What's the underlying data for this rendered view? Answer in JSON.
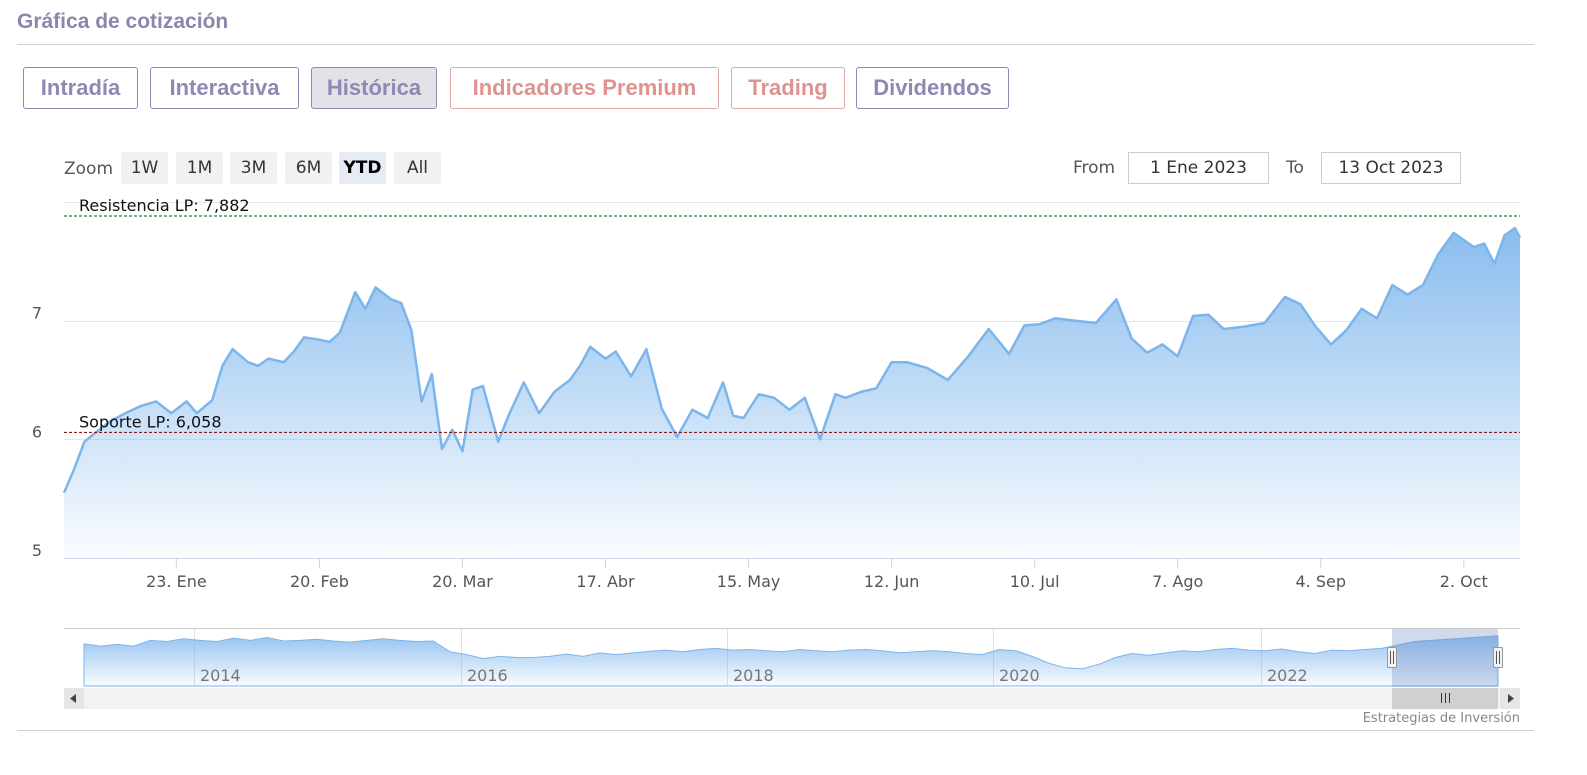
{
  "page": {
    "title": "Gráfica de cotización",
    "credit": "Estrategias de Inversión"
  },
  "tabs": [
    {
      "label": "Intradía",
      "active": false,
      "style": "normal"
    },
    {
      "label": "Interactiva",
      "active": false,
      "style": "normal"
    },
    {
      "label": "Histórica",
      "active": true,
      "style": "normal"
    },
    {
      "label": "Indicadores Premium",
      "active": false,
      "style": "premium"
    },
    {
      "label": "Trading",
      "active": false,
      "style": "premium"
    },
    {
      "label": "Dividendos",
      "active": false,
      "style": "normal"
    }
  ],
  "range_selector": {
    "zoom_label": "Zoom",
    "buttons": [
      "1W",
      "1M",
      "3M",
      "6M",
      "YTD",
      "All"
    ],
    "selected": "YTD",
    "from_label": "From",
    "from_value": "1 Ene 2023",
    "to_label": "To",
    "to_value": "13 Oct 2023"
  },
  "colors": {
    "line": "#7cb5ec",
    "resistance": "#2e7d32",
    "support": "#8b1a1a",
    "accent": "#8d89b2",
    "premium": "#de9390"
  },
  "chart_data": {
    "type": "area",
    "x_unit": "day",
    "x_start": "2023-01-01",
    "x_end": "2023-10-13",
    "ylim": [
      5,
      8
    ],
    "y_ticks": [
      5,
      6,
      7
    ],
    "x_ticks": [
      {
        "date": "2023-01-23",
        "label": "23. Ene"
      },
      {
        "date": "2023-02-20",
        "label": "20. Feb"
      },
      {
        "date": "2023-03-20",
        "label": "20. Mar"
      },
      {
        "date": "2023-04-17",
        "label": "17. Abr"
      },
      {
        "date": "2023-05-15",
        "label": "15. May"
      },
      {
        "date": "2023-06-12",
        "label": "12. Jun"
      },
      {
        "date": "2023-07-10",
        "label": "10. Jul"
      },
      {
        "date": "2023-08-07",
        "label": "7. Ago"
      },
      {
        "date": "2023-09-04",
        "label": "4. Sep"
      },
      {
        "date": "2023-10-02",
        "label": "2. Oct"
      }
    ],
    "series": [
      {
        "x": [
          "2023-01-01",
          "2023-01-03",
          "2023-01-05",
          "2023-01-07",
          "2023-01-10",
          "2023-01-13",
          "2023-01-16",
          "2023-01-19",
          "2023-01-22",
          "2023-01-25",
          "2023-01-27",
          "2023-01-30",
          "2023-02-01",
          "2023-02-03",
          "2023-02-06",
          "2023-02-08",
          "2023-02-10",
          "2023-02-13",
          "2023-02-15",
          "2023-02-17",
          "2023-02-20",
          "2023-02-22",
          "2023-02-24",
          "2023-02-27",
          "2023-03-01",
          "2023-03-03",
          "2023-03-06",
          "2023-03-08",
          "2023-03-10",
          "2023-03-12",
          "2023-03-14",
          "2023-03-16",
          "2023-03-18",
          "2023-03-20",
          "2023-03-22",
          "2023-03-24",
          "2023-03-27",
          "2023-03-29",
          "2023-04-01",
          "2023-04-04",
          "2023-04-07",
          "2023-04-10",
          "2023-04-12",
          "2023-04-14",
          "2023-04-17",
          "2023-04-19",
          "2023-04-22",
          "2023-04-25",
          "2023-04-28",
          "2023-05-01",
          "2023-05-04",
          "2023-05-07",
          "2023-05-10",
          "2023-05-12",
          "2023-05-14",
          "2023-05-17",
          "2023-05-20",
          "2023-05-23",
          "2023-05-26",
          "2023-05-29",
          "2023-06-01",
          "2023-06-03",
          "2023-06-06",
          "2023-06-09",
          "2023-06-12",
          "2023-06-15",
          "2023-06-19",
          "2023-06-23",
          "2023-06-27",
          "2023-07-01",
          "2023-07-05",
          "2023-07-08",
          "2023-07-11",
          "2023-07-14",
          "2023-07-18",
          "2023-07-22",
          "2023-07-26",
          "2023-07-29",
          "2023-08-01",
          "2023-08-04",
          "2023-08-07",
          "2023-08-10",
          "2023-08-13",
          "2023-08-16",
          "2023-08-20",
          "2023-08-24",
          "2023-08-28",
          "2023-08-31",
          "2023-09-03",
          "2023-09-06",
          "2023-09-09",
          "2023-09-12",
          "2023-09-15",
          "2023-09-18",
          "2023-09-21",
          "2023-09-24",
          "2023-09-27",
          "2023-09-30",
          "2023-10-02",
          "2023-10-04",
          "2023-10-06",
          "2023-10-08",
          "2023-10-10",
          "2023-10-12",
          "2023-10-13"
        ],
        "y": [
          5.55,
          5.75,
          5.98,
          6.05,
          6.15,
          6.22,
          6.28,
          6.32,
          6.22,
          6.32,
          6.22,
          6.33,
          6.62,
          6.76,
          6.65,
          6.62,
          6.68,
          6.65,
          6.74,
          6.86,
          6.84,
          6.82,
          6.9,
          7.24,
          7.1,
          7.28,
          7.18,
          7.15,
          6.92,
          6.32,
          6.55,
          5.92,
          6.08,
          5.9,
          6.42,
          6.45,
          5.98,
          6.2,
          6.48,
          6.22,
          6.4,
          6.5,
          6.62,
          6.78,
          6.68,
          6.74,
          6.53,
          6.76,
          6.26,
          6.02,
          6.25,
          6.18,
          6.48,
          6.2,
          6.18,
          6.38,
          6.35,
          6.25,
          6.35,
          6.0,
          6.38,
          6.35,
          6.4,
          6.43,
          6.65,
          6.65,
          6.6,
          6.5,
          6.7,
          6.93,
          6.72,
          6.96,
          6.97,
          7.02,
          7.0,
          6.98,
          7.18,
          6.85,
          6.73,
          6.8,
          6.7,
          7.04,
          7.05,
          6.93,
          6.95,
          6.98,
          7.2,
          7.14,
          6.95,
          6.8,
          6.92,
          7.1,
          7.02,
          7.3,
          7.22,
          7.3,
          7.56,
          7.74,
          7.68,
          7.62,
          7.65,
          7.48,
          7.72,
          7.78,
          7.7
        ]
      }
    ],
    "annotations": [
      {
        "label": "Resistencia LP: 7,882",
        "value": 7.882,
        "kind": "resistance"
      },
      {
        "label": "Soporte LP: 6,058",
        "value": 6.058,
        "kind": "support"
      }
    ]
  },
  "navigator": {
    "year_labels": [
      "2014",
      "2016",
      "2018",
      "2020",
      "2022"
    ],
    "points": [
      0.74,
      0.7,
      0.73,
      0.7,
      0.8,
      0.78,
      0.83,
      0.8,
      0.78,
      0.84,
      0.8,
      0.85,
      0.79,
      0.8,
      0.82,
      0.79,
      0.77,
      0.8,
      0.83,
      0.8,
      0.78,
      0.79,
      0.6,
      0.55,
      0.48,
      0.52,
      0.5,
      0.5,
      0.52,
      0.56,
      0.52,
      0.58,
      0.55,
      0.58,
      0.61,
      0.63,
      0.6,
      0.64,
      0.66,
      0.63,
      0.64,
      0.62,
      0.6,
      0.64,
      0.62,
      0.6,
      0.63,
      0.64,
      0.62,
      0.58,
      0.6,
      0.62,
      0.6,
      0.57,
      0.55,
      0.64,
      0.62,
      0.52,
      0.4,
      0.32,
      0.3,
      0.38,
      0.5,
      0.57,
      0.54,
      0.58,
      0.62,
      0.6,
      0.64,
      0.66,
      0.63,
      0.62,
      0.65,
      0.6,
      0.57,
      0.63,
      0.62,
      0.64,
      0.66,
      0.72,
      0.78,
      0.8,
      0.82,
      0.84,
      0.86,
      0.88
    ]
  }
}
